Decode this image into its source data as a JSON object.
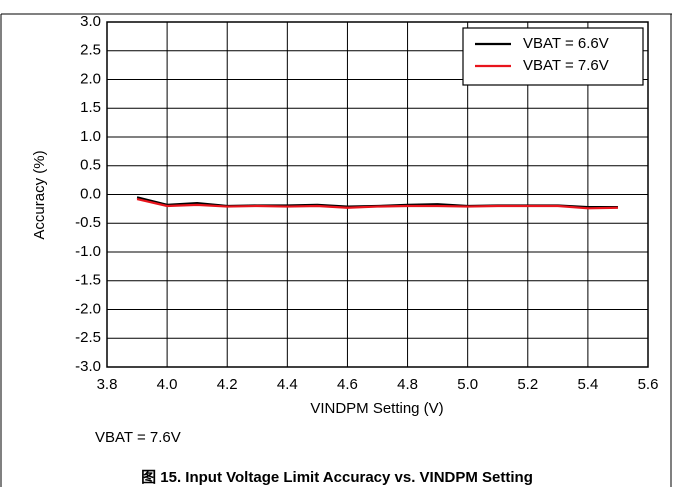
{
  "chart_data": {
    "type": "line",
    "xlabel": "VINDPM Setting (V)",
    "ylabel": "Accuracy (%)",
    "x": [
      3.9,
      4.0,
      4.1,
      4.2,
      4.3,
      4.4,
      4.5,
      4.6,
      4.7,
      4.8,
      4.9,
      5.0,
      5.1,
      5.2,
      5.3,
      5.4,
      5.5
    ],
    "series": [
      {
        "name": "VBAT = 6.6V",
        "color": "#000000",
        "values": [
          -0.05,
          -0.18,
          -0.15,
          -0.2,
          -0.19,
          -0.19,
          -0.18,
          -0.21,
          -0.2,
          -0.18,
          -0.17,
          -0.2,
          -0.19,
          -0.19,
          -0.19,
          -0.22,
          -0.22
        ]
      },
      {
        "name": "VBAT = 7.6V",
        "color": "#e8141c",
        "values": [
          -0.08,
          -0.2,
          -0.18,
          -0.21,
          -0.2,
          -0.21,
          -0.2,
          -0.23,
          -0.21,
          -0.2,
          -0.2,
          -0.21,
          -0.2,
          -0.2,
          -0.2,
          -0.24,
          -0.23
        ]
      }
    ],
    "xlim": [
      3.8,
      5.6
    ],
    "xticks": [
      3.8,
      {
        "value": 4,
        "label": "4.0"
      },
      4.2,
      4.4,
      4.6,
      4.8,
      {
        "value": 5,
        "label": "5.0"
      },
      5.2,
      5.4,
      5.6
    ],
    "ylim": [
      -3,
      3
    ],
    "yticks": [
      {
        "value": 3,
        "label": "3.0"
      },
      2.5,
      {
        "value": 2,
        "label": "2.0"
      },
      1.5,
      {
        "value": 1,
        "label": "1.0"
      },
      0.5,
      {
        "value": 0,
        "label": "0.0"
      },
      -0.5,
      {
        "value": -1,
        "label": "-1.0"
      },
      -1.5,
      {
        "value": -2,
        "label": "-2.0"
      },
      -2.5,
      {
        "value": -3,
        "label": "-3.0"
      }
    ],
    "grid": true,
    "legend": "upper right",
    "note": "VBAT = 7.6V",
    "caption": "图 15. Input Voltage Limit Accuracy vs. VINDPM Setting"
  }
}
